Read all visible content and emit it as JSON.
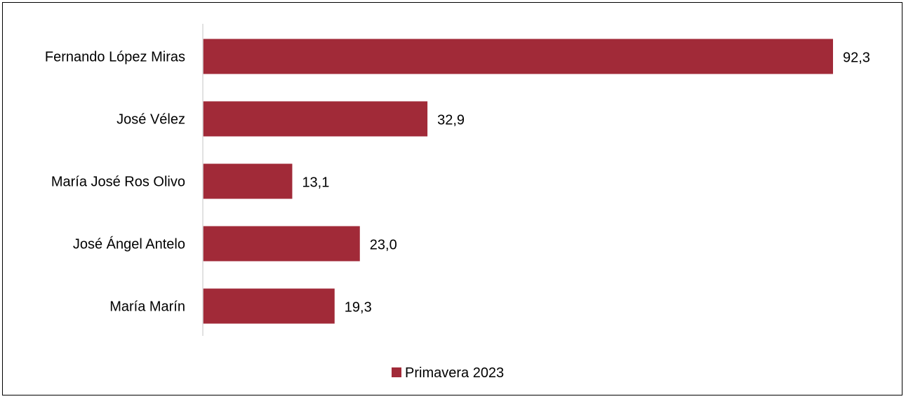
{
  "chart_data": {
    "type": "bar",
    "orientation": "horizontal",
    "title": "",
    "xlabel": "",
    "ylabel": "",
    "categories": [
      "Fernando López Miras",
      "José Vélez",
      "María José Ros Olivo",
      "José Ángel Antelo",
      "María Marín"
    ],
    "series": [
      {
        "name": "Primavera 2023",
        "color": "#A12A38",
        "values": [
          92.3,
          32.9,
          13.1,
          23.0,
          19.3
        ],
        "labels": [
          "92,3",
          "32,9",
          "13,1",
          "23,0",
          "19,3"
        ]
      }
    ],
    "xlim": [
      0,
      100
    ],
    "grid": false,
    "axis_line_color": "#D9D9D9",
    "legend_position": "bottom"
  }
}
